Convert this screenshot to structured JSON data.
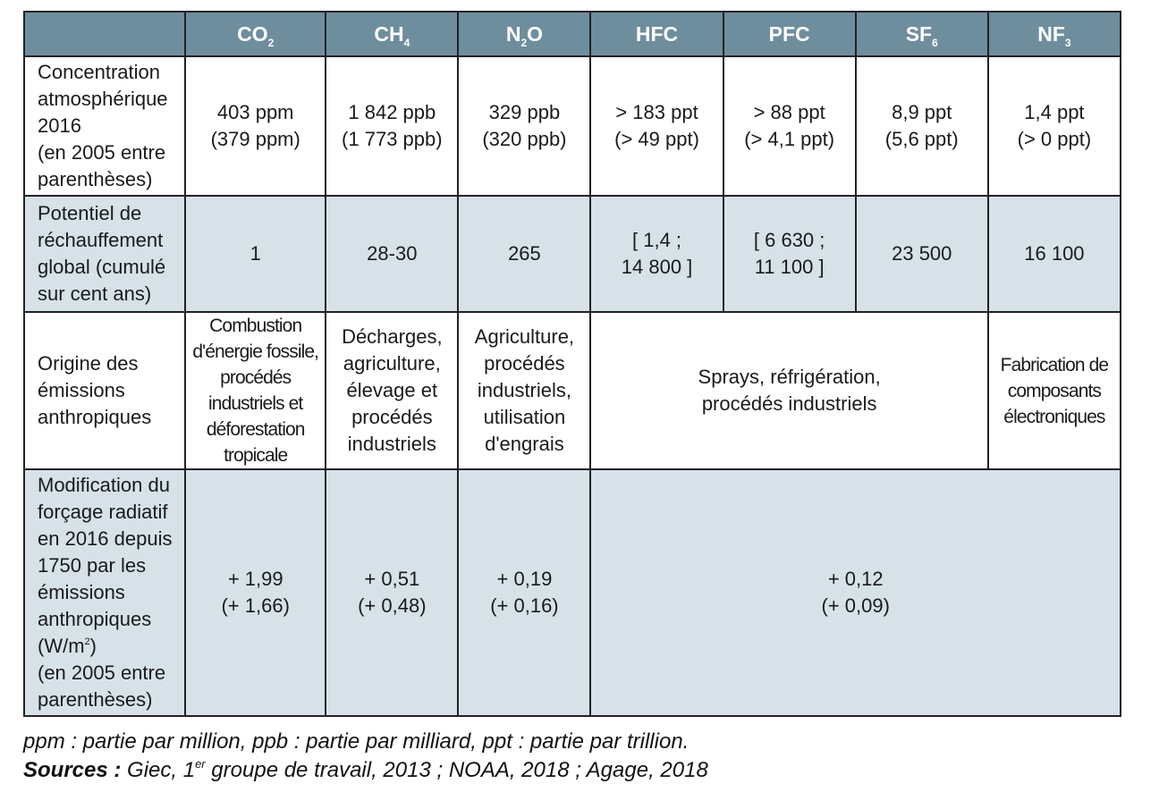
{
  "table": {
    "columns": [
      {
        "base": "",
        "sub": ""
      },
      {
        "base": "CO",
        "sub": "2"
      },
      {
        "base": "CH",
        "sub": "4"
      },
      {
        "base": "N",
        "sub": "2",
        "tail": "O"
      },
      {
        "base": "HFC",
        "sub": ""
      },
      {
        "base": "PFC",
        "sub": ""
      },
      {
        "base": "SF",
        "sub": "6"
      },
      {
        "base": "NF",
        "sub": "3"
      }
    ],
    "rows": {
      "concentration": {
        "label": [
          "Concentration",
          "atmosphérique",
          "2016",
          "(en 2005 entre",
          "parenthèses)"
        ],
        "co2": [
          "403 ppm",
          "(379 ppm)"
        ],
        "ch4": [
          "1 842 ppb",
          "(1 773 ppb)"
        ],
        "n2o": [
          "329 ppb",
          "(320 ppb)"
        ],
        "hfc": [
          "> 183 ppt",
          "(> 49 ppt)"
        ],
        "pfc": [
          "> 88 ppt",
          "(> 4,1 ppt)"
        ],
        "sf6": [
          "8,9 ppt",
          "(5,6 ppt)"
        ],
        "nf3": [
          "1,4 ppt",
          "(> 0 ppt)"
        ]
      },
      "potential": {
        "label": [
          "Potentiel de",
          "réchauffement",
          "global (cumulé",
          "sur cent ans)"
        ],
        "co2": [
          "1"
        ],
        "ch4": [
          "28-30"
        ],
        "n2o": [
          "265"
        ],
        "hfc": [
          "[ 1,4 ;",
          "14 800 ]"
        ],
        "pfc": [
          "[ 6 630 ;",
          "11 100 ]"
        ],
        "sf6": [
          "23 500"
        ],
        "nf3": [
          "16 100"
        ]
      },
      "origin": {
        "label": [
          "Origine des",
          "émissions",
          "anthropiques"
        ],
        "co2": [
          "Combustion",
          "d'énergie fossile,",
          "procédés",
          "industriels et",
          "déforestation",
          "tropicale"
        ],
        "ch4": [
          "Décharges,",
          "agriculture,",
          "élevage et",
          "procédés",
          "industriels"
        ],
        "n2o": [
          "Agriculture,",
          "procédés",
          "industriels,",
          "utilisation",
          "d'engrais"
        ],
        "hfc_pfc_sf6": [
          "Sprays, réfrigération,",
          "procédés industriels"
        ],
        "nf3": [
          "Fabrication de",
          "composants",
          "électroniques"
        ]
      },
      "forcing": {
        "label_lines": [
          "Modification du",
          "forçage radiatif",
          "en 2016 depuis",
          "1750 par les",
          "émissions",
          "anthropiques"
        ],
        "label_unit": "(W/m",
        "label_unit_sup": "2",
        "label_unit_close": ")",
        "label_tail": [
          "(en 2005 entre",
          "parenthèses)"
        ],
        "co2": [
          "+ 1,99",
          "(+ 1,66)"
        ],
        "ch4": [
          "+ 0,51",
          "(+ 0,48)"
        ],
        "n2o": [
          "+ 0,19",
          "(+ 0,16)"
        ],
        "others": [
          "+ 0,12",
          "(+ 0,09)"
        ]
      }
    }
  },
  "footnote": {
    "units": "ppm : partie par million, ppb : partie par milliard, ppt : partie par trillion.",
    "sources_label": "Sources :",
    "sources_part1": " Giec, 1",
    "sources_sup": "er",
    "sources_part2": " groupe de travail, 2013 ; NOAA, 2018 ; Agage, 2018"
  }
}
